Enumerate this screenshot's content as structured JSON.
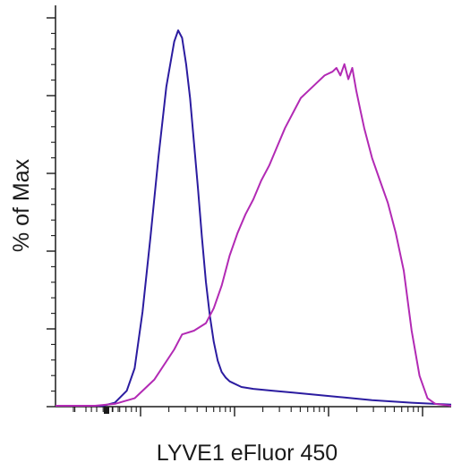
{
  "chart_data": {
    "type": "line",
    "title": "",
    "xlabel": "LYVE1 eFluor 450",
    "ylabel": "% of Max",
    "x_scale": "log (biexponential display)",
    "x_ticks_labeled": [],
    "y_ticks_labeled": [],
    "grid": false,
    "legend": "none",
    "series": [
      {
        "color": "#2b1ca0",
        "x": [
          0.0,
          0.05,
          0.09,
          0.12,
          0.15,
          0.18,
          0.2,
          0.22,
          0.24,
          0.26,
          0.28,
          0.3,
          0.31,
          0.32,
          0.33,
          0.34,
          0.35,
          0.36,
          0.37,
          0.38,
          0.39,
          0.4,
          0.41,
          0.42,
          0.43,
          0.44,
          0.45,
          0.47,
          0.5,
          0.55,
          0.6,
          0.7,
          0.8,
          0.9,
          1.0
        ],
        "y": [
          0,
          0,
          0,
          0,
          0.8,
          4,
          10,
          25,
          45,
          66,
          85,
          97,
          100,
          98,
          91,
          82,
          70,
          58,
          45,
          33,
          24,
          17,
          12,
          9,
          7.5,
          6.5,
          6,
          5,
          4.5,
          4,
          3.5,
          2.5,
          1.5,
          0.8,
          0.3
        ]
      },
      {
        "color": "#b22ab4",
        "x": [
          0.0,
          0.1,
          0.15,
          0.2,
          0.25,
          0.3,
          0.32,
          0.35,
          0.38,
          0.4,
          0.42,
          0.44,
          0.46,
          0.48,
          0.5,
          0.52,
          0.54,
          0.56,
          0.58,
          0.6,
          0.62,
          0.64,
          0.66,
          0.68,
          0.7,
          0.71,
          0.72,
          0.73,
          0.74,
          0.75,
          0.76,
          0.77,
          0.78,
          0.8,
          0.82,
          0.84,
          0.86,
          0.88,
          0.9,
          0.92,
          0.94,
          0.96,
          1.0
        ],
        "y": [
          0,
          0,
          0.5,
          2,
          7,
          15,
          19,
          20,
          22,
          26,
          32,
          40,
          46,
          51,
          55,
          60,
          64,
          69,
          74,
          78,
          82,
          84,
          86,
          88,
          89,
          90,
          88,
          91,
          87,
          90,
          84,
          79,
          74,
          66,
          60,
          54,
          46,
          36,
          20,
          8,
          2,
          0.5,
          0
        ]
      }
    ]
  }
}
